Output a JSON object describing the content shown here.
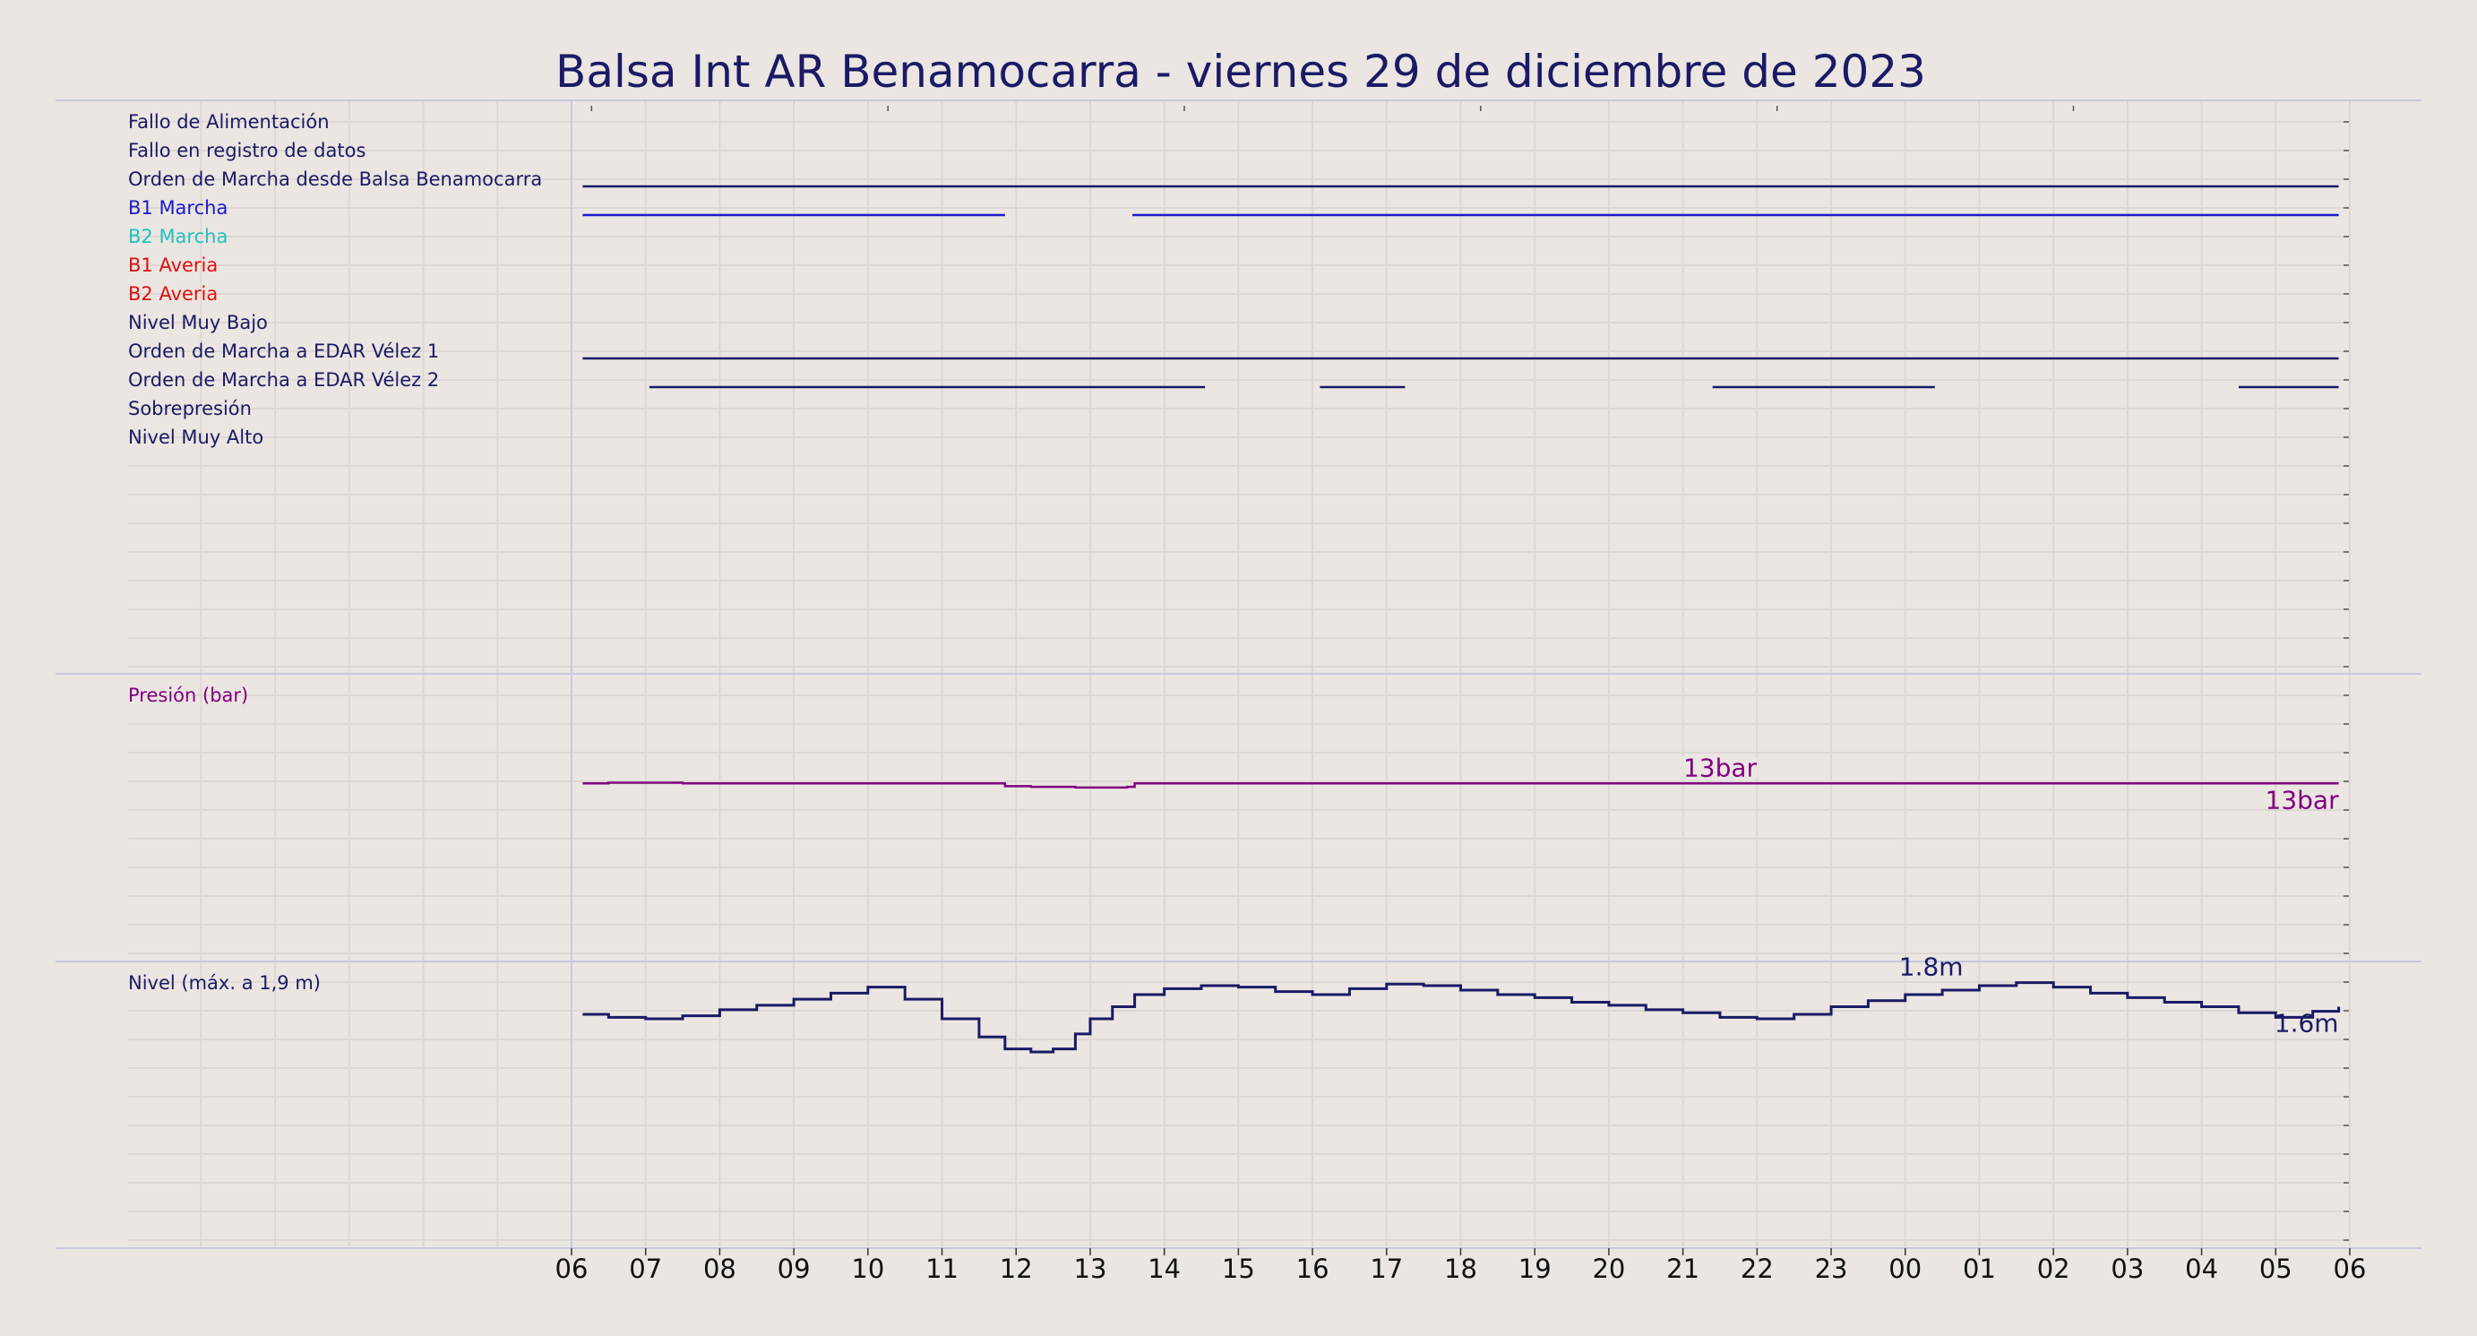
{
  "chart_data": {
    "type": "line",
    "title": "Balsa Int AR Benamocarra   -   viernes 29 de diciembre de 2023",
    "colors": {
      "background": "#ebe6e1",
      "navy": "#1a1a66",
      "blue": "#1a1acc",
      "cyan": "#20c0c0",
      "red": "#e01010",
      "purple": "#800080",
      "grid": "#ddd8d3",
      "divider": "#c8c8e0"
    },
    "x_ticks": [
      "06",
      "07",
      "08",
      "09",
      "10",
      "11",
      "12",
      "13",
      "14",
      "15",
      "16",
      "17",
      "18",
      "19",
      "20",
      "21",
      "22",
      "23",
      "00",
      "01",
      "02",
      "03",
      "04",
      "05",
      "06"
    ],
    "x_range_hours": [
      0,
      24
    ],
    "digital_panel": {
      "signals": [
        {
          "name": "Fallo de Alimentación",
          "color": "#1a1a66",
          "on_intervals": []
        },
        {
          "name": "Fallo en registro de datos",
          "color": "#1a1a66",
          "on_intervals": []
        },
        {
          "name": "Orden de Marcha desde Balsa Benamocarra",
          "color": "#1a1a66",
          "on_intervals": [
            [
              0.15,
              23.85
            ]
          ]
        },
        {
          "name": "B1 Marcha",
          "color": "#1a1acc",
          "on_intervals": [
            [
              0.15,
              5.85
            ],
            [
              7.57,
              23.85
            ]
          ]
        },
        {
          "name": "B2 Marcha",
          "color": "#20c0c0",
          "on_intervals": []
        },
        {
          "name": "B1 Averia",
          "color": "#e01010",
          "on_intervals": []
        },
        {
          "name": "B2 Averia",
          "color": "#e01010",
          "on_intervals": []
        },
        {
          "name": "Nivel Muy Bajo",
          "color": "#1a1a66",
          "on_intervals": []
        },
        {
          "name": "Orden de Marcha a EDAR Vélez 1",
          "color": "#1a1a66",
          "on_intervals": [
            [
              0.15,
              23.85
            ]
          ]
        },
        {
          "name": "Orden de Marcha a EDAR Vélez 2",
          "color": "#1a1a66",
          "on_intervals": [
            [
              1.05,
              8.55
            ],
            [
              10.1,
              11.25
            ],
            [
              15.4,
              18.4
            ],
            [
              22.5,
              23.85
            ]
          ]
        },
        {
          "name": "Sobrepresión",
          "color": "#1a1a66",
          "on_intervals": []
        },
        {
          "name": "Nivel Muy Alto",
          "color": "#1a1a66",
          "on_intervals": []
        }
      ]
    },
    "pressure_panel": {
      "label": "Presión (bar)",
      "unit": "bar",
      "color": "#800080",
      "ylim": [
        0,
        21
      ],
      "series": {
        "x": [
          0.15,
          0.5,
          1.0,
          1.5,
          2.0,
          3.0,
          4.0,
          5.0,
          5.5,
          5.85,
          6.2,
          6.8,
          7.5,
          7.6,
          8.0,
          10.0,
          12.0,
          14.0,
          16.0,
          18.0,
          20.0,
          22.0,
          23.85
        ],
        "y": [
          13.0,
          13.05,
          13.05,
          13.0,
          13.0,
          13.0,
          13.0,
          13.0,
          13.0,
          12.8,
          12.75,
          12.7,
          12.75,
          13.0,
          13.0,
          13.0,
          13.0,
          13.0,
          13.0,
          13.0,
          13.0,
          13.0,
          13.0
        ]
      },
      "annotations": [
        {
          "text": "13bar",
          "x": 15.5,
          "y": 13.0,
          "position": "above"
        },
        {
          "text": "13bar",
          "x": 23.85,
          "y": 13.0,
          "position": "below-left"
        }
      ]
    },
    "level_panel": {
      "label": "Nivel (máx. a 1,9 m)",
      "unit": "m",
      "color": "#1a1a66",
      "ylim": [
        0,
        1.9
      ],
      "series": {
        "x": [
          0.15,
          0.5,
          1.0,
          1.5,
          2.0,
          2.5,
          3.0,
          3.5,
          4.0,
          4.5,
          5.0,
          5.5,
          5.85,
          6.2,
          6.5,
          6.8,
          7.0,
          7.3,
          7.6,
          8.0,
          8.5,
          9.0,
          9.5,
          10.0,
          10.5,
          11.0,
          11.5,
          12.0,
          12.5,
          13.0,
          13.5,
          14.0,
          14.5,
          15.0,
          15.5,
          16.0,
          16.5,
          17.0,
          17.5,
          18.0,
          18.5,
          19.0,
          19.5,
          20.0,
          20.5,
          21.0,
          21.5,
          22.0,
          22.5,
          23.0,
          23.5,
          23.85
        ],
        "y": [
          1.55,
          1.53,
          1.52,
          1.54,
          1.58,
          1.61,
          1.65,
          1.69,
          1.73,
          1.65,
          1.52,
          1.4,
          1.32,
          1.3,
          1.32,
          1.42,
          1.52,
          1.6,
          1.68,
          1.72,
          1.74,
          1.73,
          1.7,
          1.68,
          1.72,
          1.75,
          1.74,
          1.71,
          1.68,
          1.66,
          1.63,
          1.61,
          1.58,
          1.56,
          1.53,
          1.52,
          1.55,
          1.6,
          1.64,
          1.68,
          1.71,
          1.74,
          1.76,
          1.73,
          1.69,
          1.66,
          1.63,
          1.6,
          1.56,
          1.53,
          1.57,
          1.6
        ]
      },
      "annotations": [
        {
          "text": "1.8m",
          "x": 18.35,
          "y": 1.76,
          "position": "above"
        },
        {
          "text": "1.6m",
          "x": 23.85,
          "y": 1.6,
          "position": "below-left"
        }
      ]
    }
  }
}
